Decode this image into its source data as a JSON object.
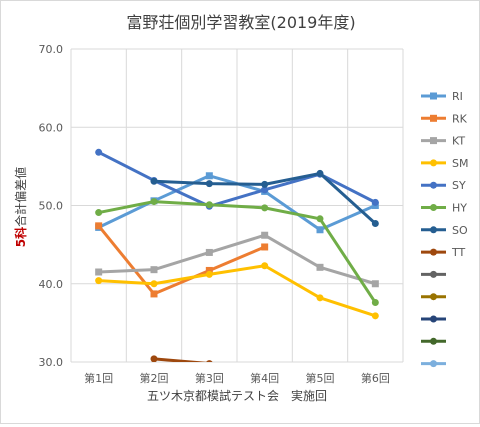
{
  "chart_data": {
    "type": "line",
    "title": "富野荘個別学習教室(2019年度)",
    "xlabel": "五ツ木京都模試テスト会　実施回",
    "ylabel": "5科合計偏差値",
    "ylabel_prefix": "5科",
    "ylabel_rest": "合計偏差値",
    "ylabel_prefix_color": "#c00000",
    "ylim": [
      30,
      70
    ],
    "yticks": [
      "30.0",
      "40.0",
      "50.0",
      "60.0",
      "70.0"
    ],
    "grid": true,
    "legend_position": "right",
    "categories": [
      "第1回",
      "第2回",
      "第3回",
      "第4回",
      "第5回",
      "第6回"
    ],
    "series": [
      {
        "name": "RI",
        "color": "#5b9bd5",
        "marker": "square",
        "values": [
          47.2,
          50.6,
          53.8,
          51.8,
          46.9,
          50.0
        ]
      },
      {
        "name": "RK",
        "color": "#ed7d31",
        "marker": "square",
        "values": [
          47.4,
          38.7,
          41.7,
          44.7,
          null,
          null
        ]
      },
      {
        "name": "KT",
        "color": "#a5a5a5",
        "marker": "square",
        "values": [
          41.5,
          41.8,
          44.0,
          46.2,
          42.1,
          40.0
        ]
      },
      {
        "name": "SM",
        "color": "#ffc000",
        "marker": "circle",
        "values": [
          40.4,
          40.0,
          41.2,
          42.3,
          38.2,
          35.9
        ]
      },
      {
        "name": "SY",
        "color": "#4472c4",
        "marker": "circle",
        "values": [
          56.8,
          53.2,
          49.9,
          52.0,
          54.0,
          50.4
        ]
      },
      {
        "name": "HY",
        "color": "#70ad47",
        "marker": "circle",
        "values": [
          49.1,
          50.5,
          50.1,
          49.7,
          48.3,
          37.6
        ]
      },
      {
        "name": "SO",
        "color": "#255e91",
        "marker": "circle",
        "values": [
          null,
          53.1,
          52.8,
          52.7,
          54.1,
          47.7
        ]
      },
      {
        "name": "TT",
        "color": "#9e480e",
        "marker": "circle",
        "values": [
          null,
          30.4,
          29.8,
          null,
          null,
          null
        ]
      }
    ],
    "extra_legend_colors": [
      "#636363",
      "#997300",
      "#264478",
      "#43682b",
      "#7cafdd"
    ]
  }
}
